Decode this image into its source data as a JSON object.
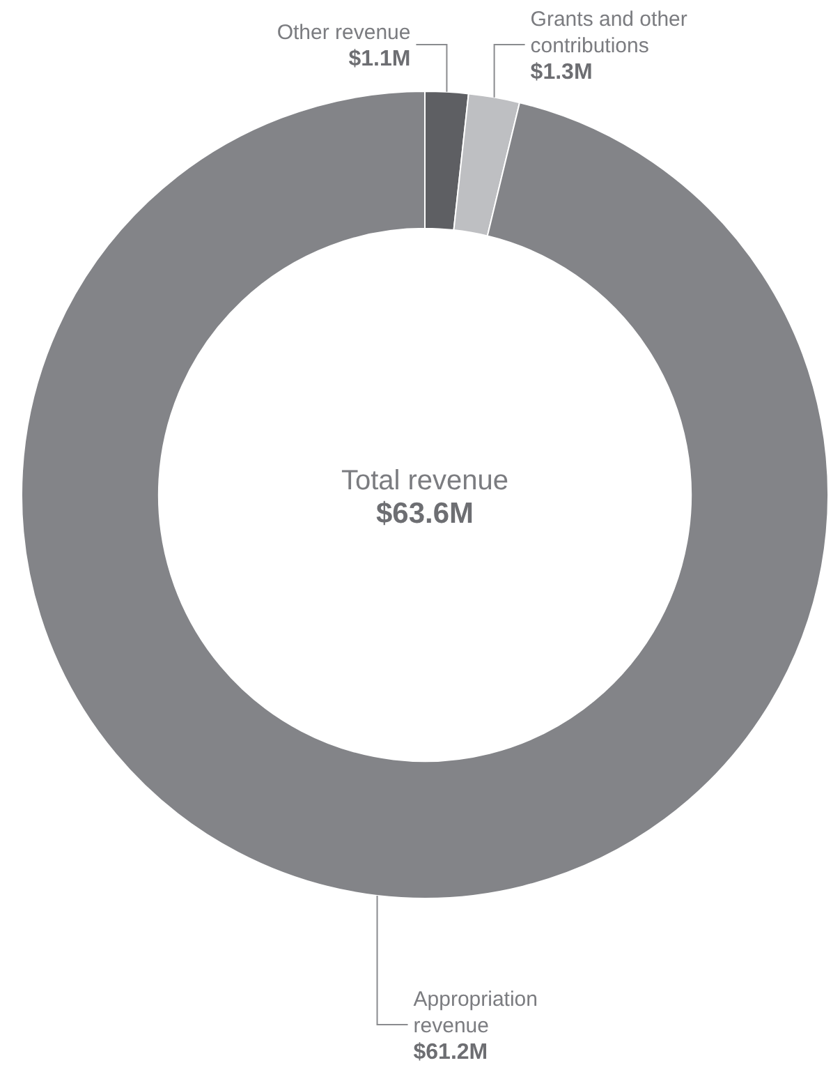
{
  "chart_data": {
    "type": "donut",
    "categories": [
      "Other revenue",
      "Grants and other contributions",
      "Appropriation revenue"
    ],
    "values": [
      1.1,
      1.3,
      61.2
    ],
    "value_labels": [
      "$1.1M",
      "$1.3M",
      "$61.2M"
    ],
    "colors": [
      "#5e5f63",
      "#bebfc2",
      "#838488"
    ],
    "annotations": [
      "Total revenue",
      "$63.6M"
    ],
    "legend": false
  }
}
